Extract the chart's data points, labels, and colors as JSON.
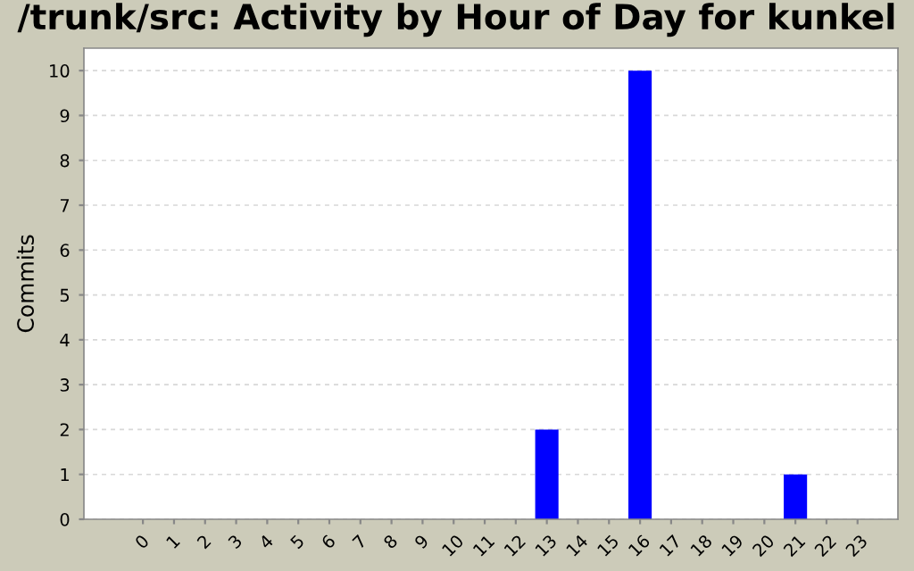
{
  "chart_data": {
    "type": "bar",
    "title": "/trunk/src: Activity by Hour of Day for kunkel",
    "ylabel": "Commits",
    "categories": [
      "0",
      "1",
      "2",
      "3",
      "4",
      "5",
      "6",
      "7",
      "8",
      "9",
      "10",
      "11",
      "12",
      "13",
      "14",
      "15",
      "16",
      "17",
      "18",
      "19",
      "20",
      "21",
      "22",
      "23"
    ],
    "values": [
      0,
      0,
      0,
      0,
      0,
      0,
      0,
      0,
      0,
      0,
      0,
      0,
      0,
      2,
      0,
      0,
      10,
      0,
      0,
      0,
      0,
      1,
      0,
      0
    ],
    "color": "#0000ff",
    "ylim": [
      0,
      10.5
    ],
    "yticks": [
      0,
      1,
      2,
      3,
      4,
      5,
      6,
      7,
      8,
      9,
      10
    ],
    "grid": "y"
  }
}
